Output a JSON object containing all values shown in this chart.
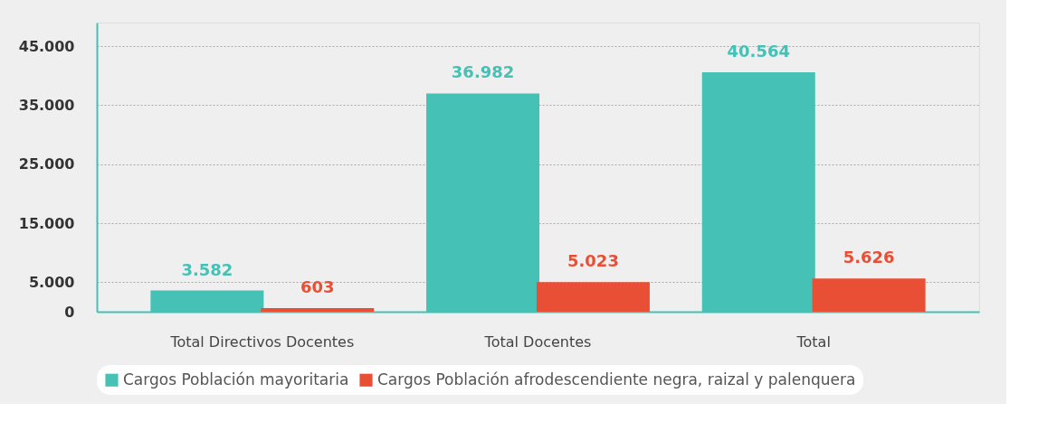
{
  "chart_data": {
    "type": "bar",
    "categories": [
      "Total Directivos Docentes",
      "Total Docentes",
      "Total"
    ],
    "series": [
      {
        "name": "Cargos Población mayoritaria",
        "color": "#45c1b5",
        "values": [
          3582,
          36982,
          40564
        ],
        "value_labels": [
          "3.582",
          "36.982",
          "40.564"
        ]
      },
      {
        "name": "Cargos Población afrodescendiente negra, raizal y palenquera",
        "color": "#e94f35",
        "values": [
          603,
          5023,
          5626
        ],
        "value_labels": [
          "603",
          "5.023",
          "5.626"
        ]
      }
    ],
    "ylim": [
      0,
      49000
    ],
    "yticks": [
      0,
      {
        "value": 5000,
        "label": "5.000"
      },
      {
        "value": 15000,
        "label": "15.000"
      },
      {
        "value": 25000,
        "label": "25.000"
      },
      {
        "value": 35000,
        "label": "35.000"
      },
      {
        "value": 45000,
        "label": "45.000"
      }
    ],
    "grid": "y",
    "legend": "bottom"
  }
}
